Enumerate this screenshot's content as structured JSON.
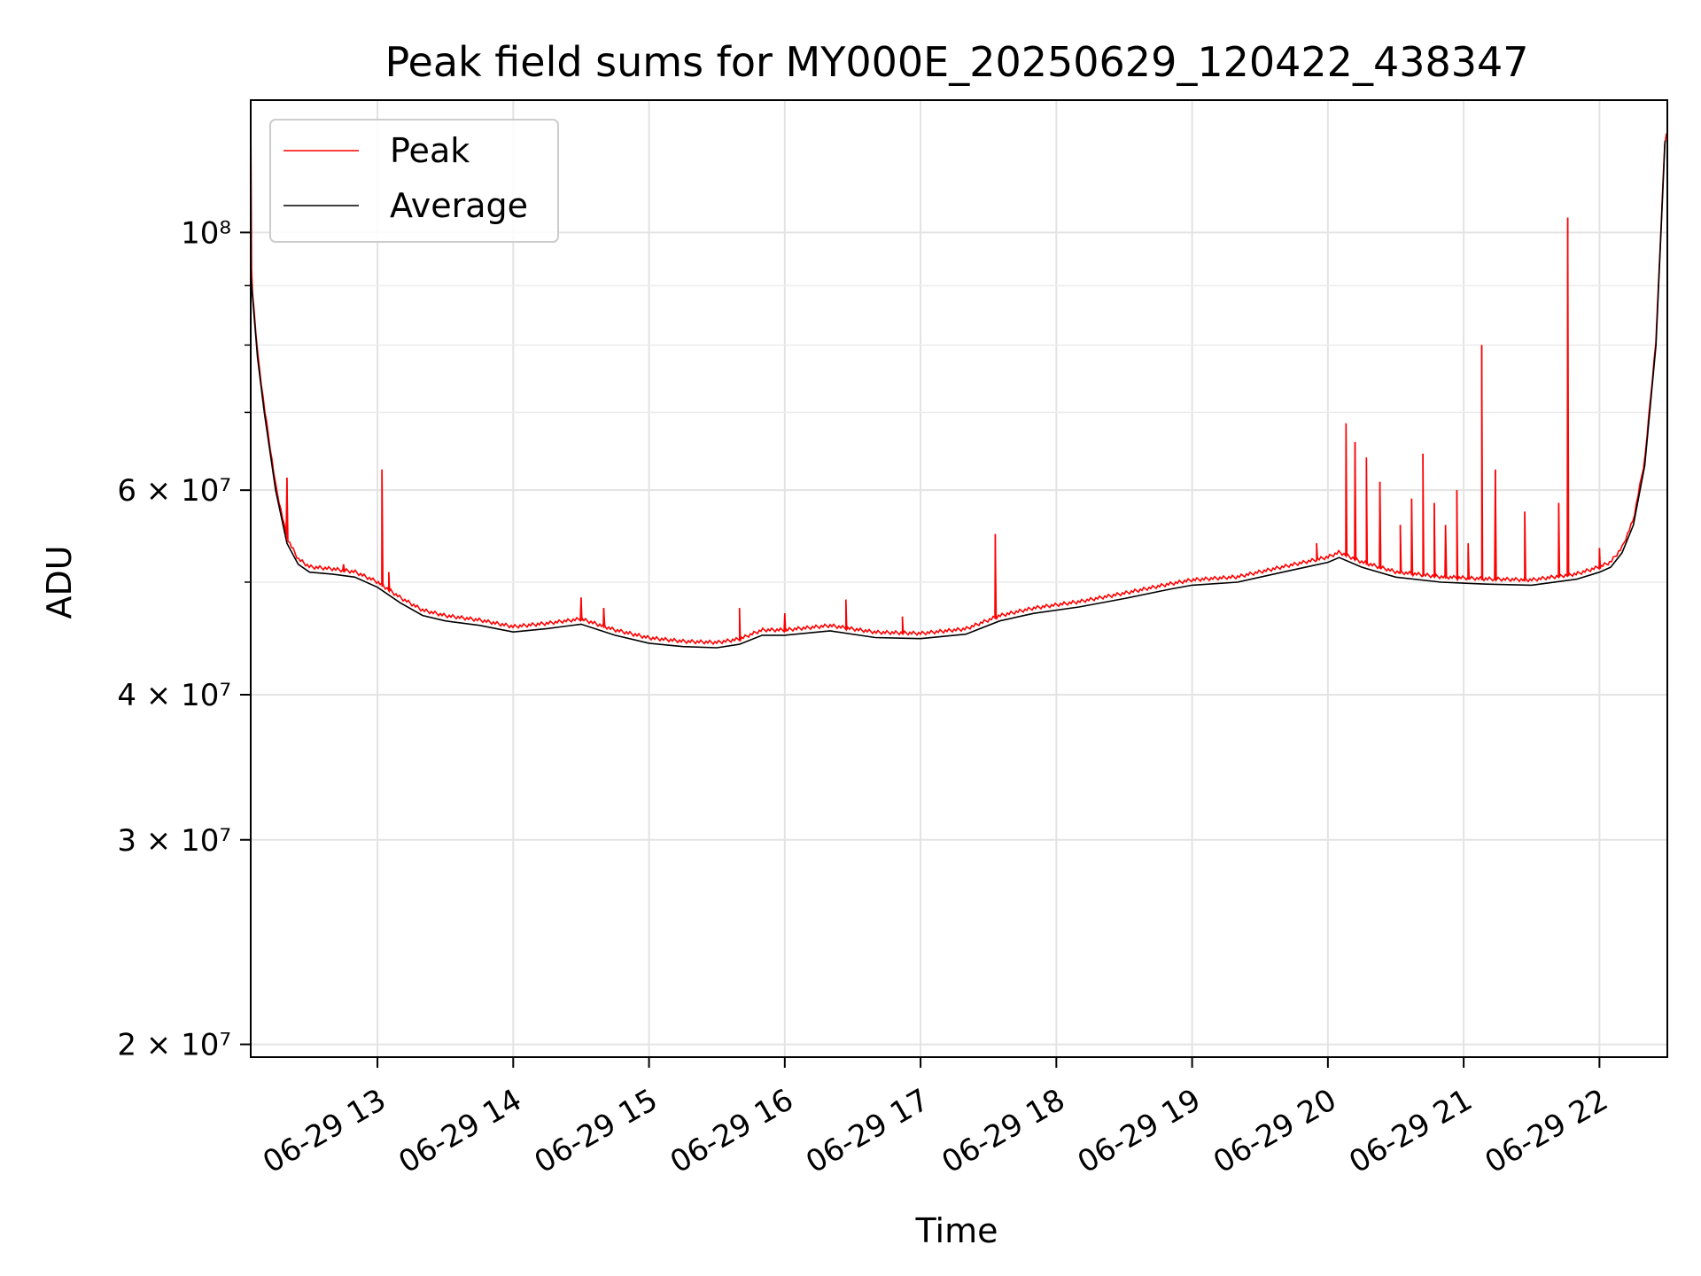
{
  "chart_data": {
    "type": "line",
    "title": "Peak field sums for MY000E_20250629_120422_438347",
    "xlabel": "Time",
    "ylabel": "ADU",
    "y_scale": "log",
    "ylim": [
      19500000,
      130000000
    ],
    "xlim": [
      "2025-06-29 12:04",
      "2025-06-29 22:30"
    ],
    "grid": true,
    "legend_position": "top-left",
    "x_ticks": [
      {
        "time": "2025-06-29 13:00",
        "label": "06-29 13"
      },
      {
        "time": "2025-06-29 14:00",
        "label": "06-29 14"
      },
      {
        "time": "2025-06-29 15:00",
        "label": "06-29 15"
      },
      {
        "time": "2025-06-29 16:00",
        "label": "06-29 16"
      },
      {
        "time": "2025-06-29 17:00",
        "label": "06-29 17"
      },
      {
        "time": "2025-06-29 18:00",
        "label": "06-29 18"
      },
      {
        "time": "2025-06-29 19:00",
        "label": "06-29 19"
      },
      {
        "time": "2025-06-29 20:00",
        "label": "06-29 20"
      },
      {
        "time": "2025-06-29 21:00",
        "label": "06-29 21"
      },
      {
        "time": "2025-06-29 22:00",
        "label": "06-29 22"
      }
    ],
    "y_ticks": [
      {
        "value": 20000000,
        "label": "2 × 10⁷"
      },
      {
        "value": 30000000,
        "label": "3 × 10⁷"
      },
      {
        "value": 40000000,
        "label": "4 × 10⁷"
      },
      {
        "value": 60000000,
        "label": "6 × 10⁷"
      },
      {
        "value": 100000000,
        "label": "10⁸"
      }
    ],
    "y_minor_ticks": [
      50000000,
      70000000,
      80000000,
      90000000
    ],
    "series": [
      {
        "name": "Average",
        "color": "#000000",
        "x": [
          "2025-06-29 12:04",
          "2025-06-29 12:07",
          "2025-06-29 12:10",
          "2025-06-29 12:15",
          "2025-06-29 12:20",
          "2025-06-29 12:25",
          "2025-06-29 12:30",
          "2025-06-29 12:40",
          "2025-06-29 12:50",
          "2025-06-29 13:00",
          "2025-06-29 13:10",
          "2025-06-29 13:20",
          "2025-06-29 13:30",
          "2025-06-29 13:45",
          "2025-06-29 14:00",
          "2025-06-29 14:15",
          "2025-06-29 14:30",
          "2025-06-29 14:45",
          "2025-06-29 15:00",
          "2025-06-29 15:15",
          "2025-06-29 15:30",
          "2025-06-29 15:40",
          "2025-06-29 15:50",
          "2025-06-29 16:00",
          "2025-06-29 16:20",
          "2025-06-29 16:40",
          "2025-06-29 17:00",
          "2025-06-29 17:20",
          "2025-06-29 17:35",
          "2025-06-29 17:50",
          "2025-06-29 18:10",
          "2025-06-29 18:30",
          "2025-06-29 18:50",
          "2025-06-29 19:00",
          "2025-06-29 19:20",
          "2025-06-29 19:40",
          "2025-06-29 20:00",
          "2025-06-29 20:05",
          "2025-06-29 20:15",
          "2025-06-29 20:30",
          "2025-06-29 20:50",
          "2025-06-29 21:10",
          "2025-06-29 21:30",
          "2025-06-29 21:50",
          "2025-06-29 22:00",
          "2025-06-29 22:05",
          "2025-06-29 22:10",
          "2025-06-29 22:15",
          "2025-06-29 22:20",
          "2025-06-29 22:25",
          "2025-06-29 22:29"
        ],
        "y": [
          92000000,
          78000000,
          70000000,
          60000000,
          54000000,
          51800000,
          51000000,
          50800000,
          50500000,
          49500000,
          48000000,
          46800000,
          46300000,
          45900000,
          45300000,
          45600000,
          46000000,
          45000000,
          44300000,
          44000000,
          43900000,
          44200000,
          45000000,
          45000000,
          45400000,
          44800000,
          44700000,
          45100000,
          46300000,
          47000000,
          47600000,
          48400000,
          49300000,
          49700000,
          50000000,
          51000000,
          52000000,
          52500000,
          51500000,
          50500000,
          50000000,
          49800000,
          49700000,
          50300000,
          51000000,
          51500000,
          53000000,
          56000000,
          63000000,
          80000000,
          120000000
        ]
      },
      {
        "name": "Peak",
        "color": "#ff0000",
        "spikes": [
          {
            "x": "2025-06-29 12:04",
            "y": 128000000
          },
          {
            "x": "2025-06-29 12:20",
            "y": 61500000
          },
          {
            "x": "2025-06-29 12:45",
            "y": 51800000
          },
          {
            "x": "2025-06-29 13:02",
            "y": 62500000
          },
          {
            "x": "2025-06-29 13:05",
            "y": 51000000
          },
          {
            "x": "2025-06-29 14:30",
            "y": 48500000
          },
          {
            "x": "2025-06-29 14:40",
            "y": 47500000
          },
          {
            "x": "2025-06-29 15:40",
            "y": 47500000
          },
          {
            "x": "2025-06-29 16:00",
            "y": 47000000
          },
          {
            "x": "2025-06-29 16:27",
            "y": 48300000
          },
          {
            "x": "2025-06-29 16:52",
            "y": 46700000
          },
          {
            "x": "2025-06-29 17:33",
            "y": 55000000
          },
          {
            "x": "2025-06-29 19:55",
            "y": 54000000
          },
          {
            "x": "2025-06-29 20:08",
            "y": 68500000
          },
          {
            "x": "2025-06-29 20:12",
            "y": 66000000
          },
          {
            "x": "2025-06-29 20:17",
            "y": 64000000
          },
          {
            "x": "2025-06-29 20:23",
            "y": 61000000
          },
          {
            "x": "2025-06-29 20:32",
            "y": 56000000
          },
          {
            "x": "2025-06-29 20:37",
            "y": 59000000
          },
          {
            "x": "2025-06-29 20:42",
            "y": 64500000
          },
          {
            "x": "2025-06-29 20:47",
            "y": 58500000
          },
          {
            "x": "2025-06-29 20:52",
            "y": 56000000
          },
          {
            "x": "2025-06-29 20:57",
            "y": 60000000
          },
          {
            "x": "2025-06-29 21:02",
            "y": 54000000
          },
          {
            "x": "2025-06-29 21:08",
            "y": 80000000
          },
          {
            "x": "2025-06-29 21:14",
            "y": 62500000
          },
          {
            "x": "2025-06-29 21:27",
            "y": 57500000
          },
          {
            "x": "2025-06-29 21:42",
            "y": 58500000
          },
          {
            "x": "2025-06-29 21:46",
            "y": 103000000
          },
          {
            "x": "2025-06-29 22:00",
            "y": 53500000
          }
        ]
      }
    ]
  }
}
